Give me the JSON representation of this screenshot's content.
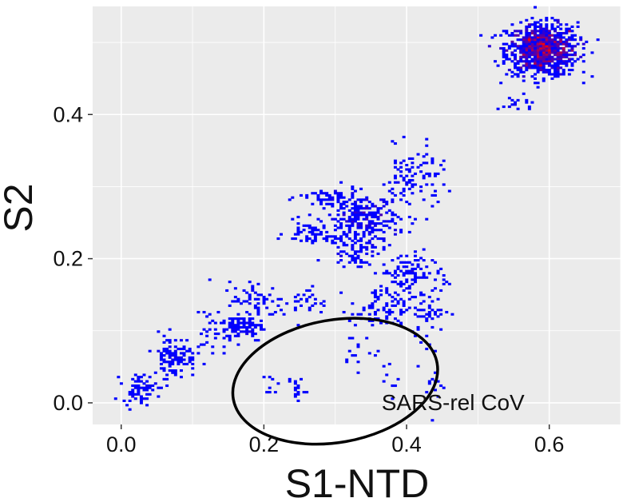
{
  "chart_data": {
    "type": "heatmap",
    "title": "",
    "xlabel": "S1-NTD",
    "ylabel": "S2",
    "xlim": [
      -0.04,
      0.7
    ],
    "ylim": [
      -0.03,
      0.55
    ],
    "x_ticks": [
      "0.0",
      "0.2",
      "0.4",
      "0.6"
    ],
    "y_ticks": [
      "0.0",
      "0.2",
      "0.4"
    ],
    "grid": true,
    "legend": "none",
    "colors": {
      "panel_background": "#ebebeb",
      "grid": "#ffffff",
      "low_density": "#0000ff",
      "high_density": "#ff0000",
      "annotation": "#000000"
    },
    "density_clusters": [
      {
        "x": 0.59,
        "y": 0.49,
        "sx": 0.025,
        "sy": 0.018,
        "n": 900,
        "peak": 1.0
      },
      {
        "x": 0.555,
        "y": 0.415,
        "sx": 0.012,
        "sy": 0.006,
        "n": 20,
        "peak": 0.15
      },
      {
        "x": 0.34,
        "y": 0.255,
        "sx": 0.025,
        "sy": 0.017,
        "n": 260,
        "peak": 0.55
      },
      {
        "x": 0.405,
        "y": 0.31,
        "sx": 0.02,
        "sy": 0.022,
        "n": 90,
        "peak": 0.25
      },
      {
        "x": 0.29,
        "y": 0.285,
        "sx": 0.02,
        "sy": 0.007,
        "n": 50,
        "peak": 0.2
      },
      {
        "x": 0.27,
        "y": 0.235,
        "sx": 0.02,
        "sy": 0.008,
        "n": 60,
        "peak": 0.2
      },
      {
        "x": 0.33,
        "y": 0.21,
        "sx": 0.02,
        "sy": 0.01,
        "n": 60,
        "peak": 0.2
      },
      {
        "x": 0.4,
        "y": 0.18,
        "sx": 0.018,
        "sy": 0.015,
        "n": 90,
        "peak": 0.25
      },
      {
        "x": 0.36,
        "y": 0.13,
        "sx": 0.02,
        "sy": 0.015,
        "n": 70,
        "peak": 0.2
      },
      {
        "x": 0.42,
        "y": 0.13,
        "sx": 0.02,
        "sy": 0.015,
        "n": 60,
        "peak": 0.2
      },
      {
        "x": 0.17,
        "y": 0.105,
        "sx": 0.015,
        "sy": 0.01,
        "n": 90,
        "peak": 0.25
      },
      {
        "x": 0.19,
        "y": 0.14,
        "sx": 0.02,
        "sy": 0.015,
        "n": 70,
        "peak": 0.2
      },
      {
        "x": 0.075,
        "y": 0.065,
        "sx": 0.015,
        "sy": 0.015,
        "n": 110,
        "peak": 0.3
      },
      {
        "x": 0.025,
        "y": 0.02,
        "sx": 0.012,
        "sy": 0.01,
        "n": 70,
        "peak": 0.25
      },
      {
        "x": 0.13,
        "y": 0.1,
        "sx": 0.012,
        "sy": 0.02,
        "n": 30,
        "peak": 0.15
      },
      {
        "x": 0.26,
        "y": 0.14,
        "sx": 0.015,
        "sy": 0.01,
        "n": 30,
        "peak": 0.15
      },
      {
        "x": 0.245,
        "y": 0.02,
        "sx": 0.006,
        "sy": 0.01,
        "n": 18,
        "peak": 0.15
      },
      {
        "x": 0.21,
        "y": 0.025,
        "sx": 0.005,
        "sy": 0.008,
        "n": 8,
        "peak": 0.1
      },
      {
        "x": 0.33,
        "y": 0.07,
        "sx": 0.015,
        "sy": 0.012,
        "n": 15,
        "peak": 0.1
      },
      {
        "x": 0.43,
        "y": 0.04,
        "sx": 0.01,
        "sy": 0.03,
        "n": 20,
        "peak": 0.1
      },
      {
        "x": 0.38,
        "y": 0.03,
        "sx": 0.008,
        "sy": 0.01,
        "n": 8,
        "peak": 0.1
      },
      {
        "x": 0.44,
        "y": 0.32,
        "sx": 0.01,
        "sy": 0.02,
        "n": 12,
        "peak": 0.1
      },
      {
        "x": 0.445,
        "y": 0.17,
        "sx": 0.006,
        "sy": 0.01,
        "n": 8,
        "peak": 0.1
      }
    ],
    "annotation": {
      "label": "SARS-rel CoV",
      "ellipse_center": [
        0.3,
        0.03
      ],
      "ellipse_radii": [
        0.145,
        0.085
      ],
      "label_anchor": [
        0.365,
        -0.01
      ]
    }
  }
}
